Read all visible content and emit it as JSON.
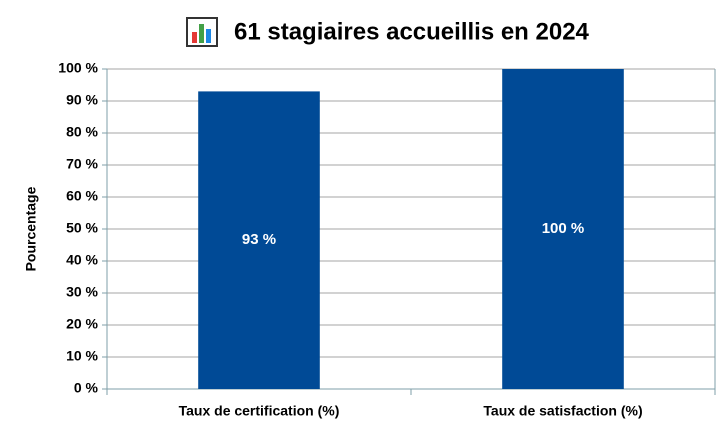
{
  "chart_data": {
    "type": "bar",
    "title": "61 stagiaires accueillis en 2024",
    "y_label": "Pourcentage",
    "categories": [
      "Taux de certification (%)",
      "Taux de satisfaction (%)"
    ],
    "values": [
      93,
      100
    ],
    "value_labels": [
      "93 %",
      "100 %"
    ],
    "color": "#004a96",
    "ylim": [
      0,
      100
    ],
    "yticks": [
      {
        "value": 0,
        "label": "0 %"
      },
      {
        "value": 10,
        "label": "10 %"
      },
      {
        "value": 20,
        "label": "20 %"
      },
      {
        "value": 30,
        "label": "30 %"
      },
      {
        "value": 40,
        "label": "40 %"
      },
      {
        "value": 50,
        "label": "50 %"
      },
      {
        "value": 60,
        "label": "60 %"
      },
      {
        "value": 70,
        "label": "70 %"
      },
      {
        "value": 80,
        "label": "80 %"
      },
      {
        "value": 90,
        "label": "90 %"
      },
      {
        "value": 100,
        "label": "100 %"
      }
    ],
    "grid": true
  }
}
